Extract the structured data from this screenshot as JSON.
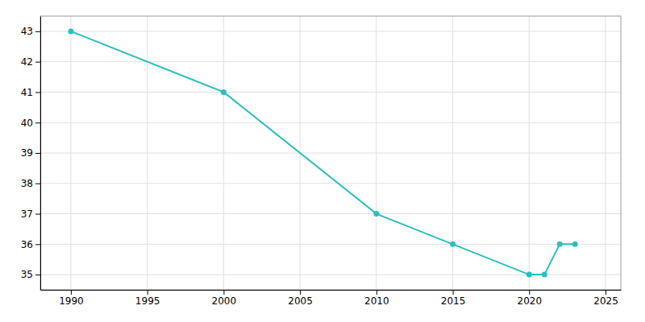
{
  "chart_data": {
    "type": "line",
    "x": [
      1990,
      2000,
      2010,
      2015,
      2020,
      2021,
      2022,
      2023
    ],
    "values": [
      43.0,
      41.0,
      37.0,
      36.0,
      35.0,
      35.0,
      36.0,
      36.0
    ],
    "color": "#2abfbf",
    "marker": "circle",
    "line_style": "solid",
    "xlim": [
      1988,
      2026
    ],
    "ylim": [
      34.5,
      43.5
    ],
    "xticks": [
      1990,
      1995,
      2000,
      2005,
      2010,
      2015,
      2020,
      2025
    ],
    "yticks": [
      35,
      36,
      37,
      38,
      39,
      40,
      41,
      42,
      43
    ],
    "grid": true
  }
}
